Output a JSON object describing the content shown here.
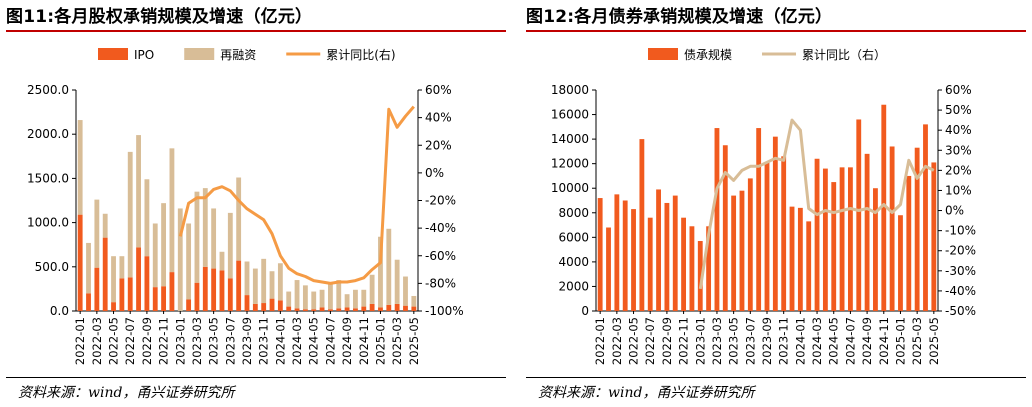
{
  "page": {
    "source_left": "资料来源：wind，甬兴证券研究所",
    "source_right": "资料来源：wind，甬兴证券研究所"
  },
  "chart_data": [
    {
      "type": "bar",
      "title": "图11:各月股权承销规模及增速（亿元）",
      "stacked": true,
      "legend": [
        "IPO",
        "再融资",
        "累计同比(右)"
      ],
      "legend_position": "top",
      "categories": [
        "2022-01",
        "2022-02",
        "2022-03",
        "2022-04",
        "2022-05",
        "2022-06",
        "2022-07",
        "2022-08",
        "2022-09",
        "2022-10",
        "2022-11",
        "2022-12",
        "2023-01",
        "2023-02",
        "2023-03",
        "2023-04",
        "2023-05",
        "2023-06",
        "2023-07",
        "2023-08",
        "2023-09",
        "2023-10",
        "2023-11",
        "2023-12",
        "2024-01",
        "2024-02",
        "2024-03",
        "2024-04",
        "2024-05",
        "2024-06",
        "2024-07",
        "2024-08",
        "2024-09",
        "2024-10",
        "2024-11",
        "2024-12",
        "2025-01",
        "2025-02",
        "2025-03",
        "2025-04",
        "2025-05"
      ],
      "tick_labels": [
        "2022-01",
        "2022-03",
        "2022-05",
        "2022-07",
        "2022-09",
        "2022-11",
        "2023-01",
        "2023-03",
        "2023-05",
        "2023-07",
        "2023-09",
        "2023-11",
        "2024-01",
        "2024-03",
        "2024-05",
        "2024-07",
        "2024-09",
        "2024-11",
        "2025-01",
        "2025-03",
        "2025-05"
      ],
      "series": [
        {
          "name": "IPO",
          "color": "#f15a1e",
          "values": [
            1090,
            200,
            490,
            830,
            100,
            370,
            380,
            720,
            620,
            270,
            280,
            440,
            0,
            130,
            320,
            500,
            480,
            460,
            370,
            570,
            180,
            80,
            90,
            140,
            120,
            50,
            30,
            20,
            20,
            40,
            20,
            30,
            40,
            30,
            50,
            80,
            40,
            70,
            80,
            60,
            50
          ]
        },
        {
          "name": "再融资",
          "color": "#d8bd97",
          "values": [
            1070,
            570,
            770,
            270,
            520,
            250,
            1420,
            1270,
            870,
            720,
            940,
            1400,
            1160,
            860,
            1030,
            890,
            680,
            210,
            740,
            940,
            380,
            400,
            500,
            310,
            420,
            170,
            320,
            270,
            200,
            200,
            300,
            320,
            150,
            210,
            190,
            330,
            800,
            860,
            500,
            330,
            120
          ]
        },
        {
          "name": "累计同比(右)",
          "type": "line",
          "axis": "right",
          "color": "#f59b45",
          "values": [
            null,
            null,
            null,
            null,
            null,
            null,
            null,
            null,
            null,
            null,
            null,
            null,
            -46,
            -22,
            -18,
            -18,
            -12,
            -10,
            -13,
            -20,
            -26,
            -30,
            -34,
            -44,
            -60,
            -69,
            -73,
            -75,
            -78,
            -79,
            -80,
            -79,
            -79,
            -78,
            -76,
            -70,
            -65,
            46,
            33,
            41,
            48
          ]
        }
      ],
      "ylim": [
        0,
        2500
      ],
      "yticks": [
        "0.0",
        "500.0",
        "1000.0",
        "1500.0",
        "2000.0",
        "2500.0"
      ],
      "y2lim": [
        -100,
        60
      ],
      "y2ticks": [
        "-100%",
        "-80%",
        "-60%",
        "-40%",
        "-20%",
        "0%",
        "20%",
        "40%",
        "60%"
      ],
      "grid": false
    },
    {
      "type": "bar",
      "title": "图12:各月债券承销规模及增速（亿元）",
      "legend": [
        "债承规模",
        "累计同比（右）"
      ],
      "legend_position": "top",
      "categories": [
        "2022-01",
        "2022-02",
        "2022-03",
        "2022-04",
        "2022-05",
        "2022-06",
        "2022-07",
        "2022-08",
        "2022-09",
        "2022-10",
        "2022-11",
        "2022-12",
        "2023-01",
        "2023-02",
        "2023-03",
        "2023-04",
        "2023-05",
        "2023-06",
        "2023-07",
        "2023-08",
        "2023-09",
        "2023-10",
        "2023-11",
        "2023-12",
        "2024-01",
        "2024-02",
        "2024-03",
        "2024-04",
        "2024-05",
        "2024-06",
        "2024-07",
        "2024-08",
        "2024-09",
        "2024-10",
        "2024-11",
        "2024-12",
        "2025-01",
        "2025-02",
        "2025-03",
        "2025-04",
        "2025-05"
      ],
      "tick_labels": [
        "2022-01",
        "2022-03",
        "2022-05",
        "2022-07",
        "2022-09",
        "2022-11",
        "2023-01",
        "2023-03",
        "2023-05",
        "2023-07",
        "2023-09",
        "2023-11",
        "2024-01",
        "2024-03",
        "2024-05",
        "2024-07",
        "2024-09",
        "2024-11",
        "2025-01",
        "2025-03",
        "2025-05"
      ],
      "series": [
        {
          "name": "债承规模",
          "color": "#f15a1e",
          "values": [
            9200,
            6800,
            9500,
            9000,
            8300,
            14000,
            7600,
            9900,
            8800,
            9400,
            7600,
            6900,
            5700,
            6900,
            14900,
            13500,
            9400,
            9800,
            10800,
            14900,
            12100,
            14200,
            12600,
            8500,
            8400,
            7300,
            12400,
            11600,
            10500,
            11700,
            11700,
            15600,
            12800,
            10000,
            16800,
            13400,
            7800,
            11000,
            13300,
            15200,
            12100
          ]
        },
        {
          "name": "累计同比（右）",
          "type": "line",
          "axis": "right",
          "color": "#d8bd97",
          "values": [
            null,
            null,
            null,
            null,
            null,
            null,
            null,
            null,
            null,
            null,
            null,
            null,
            -39,
            -12,
            11,
            19,
            15,
            20,
            22,
            22,
            24,
            26,
            25,
            45,
            40,
            1,
            -2,
            0,
            -1,
            0,
            1,
            0,
            1,
            -1,
            3,
            -1,
            3,
            25,
            16,
            22,
            20
          ]
        }
      ],
      "ylim": [
        0,
        18000
      ],
      "yticks": [
        "0",
        "2000",
        "4000",
        "6000",
        "8000",
        "10000",
        "12000",
        "14000",
        "16000",
        "18000"
      ],
      "y2lim": [
        -50,
        60
      ],
      "y2ticks": [
        "-50%",
        "-40%",
        "-30%",
        "-20%",
        "-10%",
        "0%",
        "10%",
        "20%",
        "30%",
        "40%",
        "50%",
        "60%"
      ],
      "grid": false
    }
  ]
}
